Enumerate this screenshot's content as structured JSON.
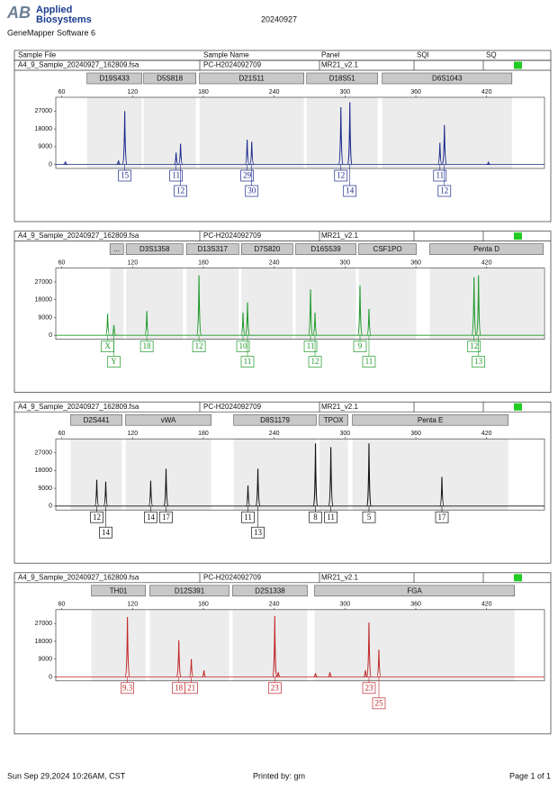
{
  "header": {
    "logo_mark": "AB",
    "brand_line1": "Applied",
    "brand_line2": "Biosystems",
    "software": "GeneMapper Software 6",
    "title": "20240927"
  },
  "columns": [
    "Sample File",
    "Sample Name",
    "Panel",
    "SQI",
    "SQ"
  ],
  "footer": {
    "date": "Sun Sep 29,2024 10:26AM, CST",
    "printed_by": "Printed by: gm",
    "page": "Page 1 of 1"
  },
  "chart_data": [
    {
      "type": "peaks",
      "file": "A4_9_Sample_20240927_162809.fsa",
      "sample_name": "PC-H2024092709",
      "panel": "MR21_v2.1",
      "color": "#1c2a8c",
      "markers": [
        {
          "name": "D19S433",
          "start": 81.4,
          "end": 127.9
        },
        {
          "name": "D5S818",
          "start": 129.4,
          "end": 173.7
        },
        {
          "name": "D21S11",
          "start": 176.7,
          "end": 265.2
        },
        {
          "name": "D18S51",
          "start": 267.5,
          "end": 327.7
        },
        {
          "name": "D6S1043",
          "start": 331.5,
          "end": 441.4
        }
      ],
      "xlim": [
        55,
        469
      ],
      "xticks": [
        60,
        120,
        180,
        240,
        300,
        360,
        420
      ],
      "ylim": [
        -2000,
        34000
      ],
      "yticks": [
        0,
        9000,
        18000,
        27000
      ],
      "x": [
        63.1,
        108.1,
        113.4,
        156.9,
        160.7,
        217.1,
        221.0,
        296.5,
        304.1,
        380.4,
        384.2,
        421.5
      ],
      "values": [
        1500,
        2000,
        27000,
        6000,
        10500,
        12500,
        11500,
        29000,
        31500,
        11000,
        20000,
        1000
      ],
      "labels": [
        null,
        null,
        "15",
        "11",
        "12",
        "29",
        "30",
        "12",
        "14",
        "11",
        "12",
        null
      ]
    },
    {
      "type": "peaks",
      "file": "A4_9_Sample_20240927_162809.fsa",
      "sample_name": "PC-H2024092709",
      "panel": "MR21_v2.1",
      "color": "#1e9a2a",
      "markers": [
        {
          "name": "...",
          "start": 100.9,
          "end": 112.4
        },
        {
          "name": "D3S1358",
          "start": 114.6,
          "end": 162.7
        },
        {
          "name": "D13S317",
          "start": 165.7,
          "end": 210.0
        },
        {
          "name": "D7S820",
          "start": 212.3,
          "end": 255.8
        },
        {
          "name": "D16S539",
          "start": 258.2,
          "end": 309.3
        },
        {
          "name": "CSF1PO",
          "start": 311.6,
          "end": 360.4
        },
        {
          "name": "Penta D",
          "start": 371.8,
          "end": 467.9
        }
      ],
      "xlim": [
        55,
        469
      ],
      "xticks": [
        60,
        120,
        180,
        240,
        300,
        360,
        420
      ],
      "ylim": [
        -2000,
        34000
      ],
      "yticks": [
        0,
        9000,
        18000,
        27000
      ],
      "x": [
        98.9,
        104.2,
        132.1,
        176.3,
        213.6,
        217.4,
        270.8,
        274.6,
        312.7,
        320.3,
        409.3,
        413.1
      ],
      "values": [
        10900,
        5200,
        12300,
        30300,
        11400,
        16600,
        23200,
        11400,
        25100,
        13300,
        29400,
        30300
      ],
      "labels": [
        "X",
        "Y",
        "18",
        "12",
        "10",
        "11",
        "11",
        "12",
        "9",
        "11",
        "12",
        "13"
      ]
    },
    {
      "type": "peaks",
      "file": "A4_9_Sample_20240927_162809.fsa",
      "sample_name": "PC-H2024092709",
      "panel": "MR21_v2.1",
      "color": "#111111",
      "markers": [
        {
          "name": "D2S441",
          "start": 67.6,
          "end": 111.1
        },
        {
          "name": "vWA",
          "start": 114.1,
          "end": 186.6
        },
        {
          "name": "D8S1179",
          "start": 205.7,
          "end": 275.7
        },
        {
          "name": "TPOX",
          "start": 278.1,
          "end": 302.5
        },
        {
          "name": "Penta E",
          "start": 306.3,
          "end": 438.3
        }
      ],
      "xlim": [
        55,
        469
      ],
      "xticks": [
        60,
        120,
        180,
        240,
        300,
        360,
        420
      ],
      "ylim": [
        -2000,
        34000
      ],
      "yticks": [
        0,
        9000,
        18000,
        27000
      ],
      "x": [
        89.7,
        97.3,
        135.4,
        148.4,
        217.8,
        226.2,
        275.0,
        288.0,
        320.3,
        382.1
      ],
      "values": [
        13300,
        12300,
        12800,
        18900,
        10400,
        18900,
        31700,
        29800,
        31700,
        14700
      ],
      "labels": [
        "12",
        "14",
        "14",
        "17",
        "11",
        "13",
        "8",
        "11",
        "5",
        "17"
      ]
    },
    {
      "type": "peaks",
      "file": "A4_9_Sample_20240927_162809.fsa",
      "sample_name": "PC-H2024092709",
      "panel": "MR21_v2.1",
      "color": "#c0282a",
      "markers": [
        {
          "name": "TH01",
          "start": 85.2,
          "end": 130.9
        },
        {
          "name": "D12S391",
          "start": 134.7,
          "end": 201.8
        },
        {
          "name": "D2S1338",
          "start": 204.8,
          "end": 268.1
        },
        {
          "name": "FGA",
          "start": 274.2,
          "end": 443.6
        }
      ],
      "xlim": [
        55,
        469
      ],
      "xticks": [
        60,
        120,
        180,
        240,
        300,
        360,
        420
      ],
      "ylim": [
        -2000,
        34000
      ],
      "yticks": [
        0,
        9000,
        18000,
        27000
      ],
      "x": [
        115.7,
        159.2,
        169.8,
        180.5,
        240.5,
        243.5,
        275.0,
        287.2,
        317.3,
        320.3,
        328.7
      ],
      "values": [
        30300,
        18500,
        9000,
        3300,
        30800,
        2300,
        1800,
        2300,
        3300,
        27500,
        13700
      ],
      "labels": [
        "9.3",
        "18",
        "21",
        null,
        "23",
        null,
        null,
        null,
        null,
        "23",
        "25"
      ]
    }
  ]
}
